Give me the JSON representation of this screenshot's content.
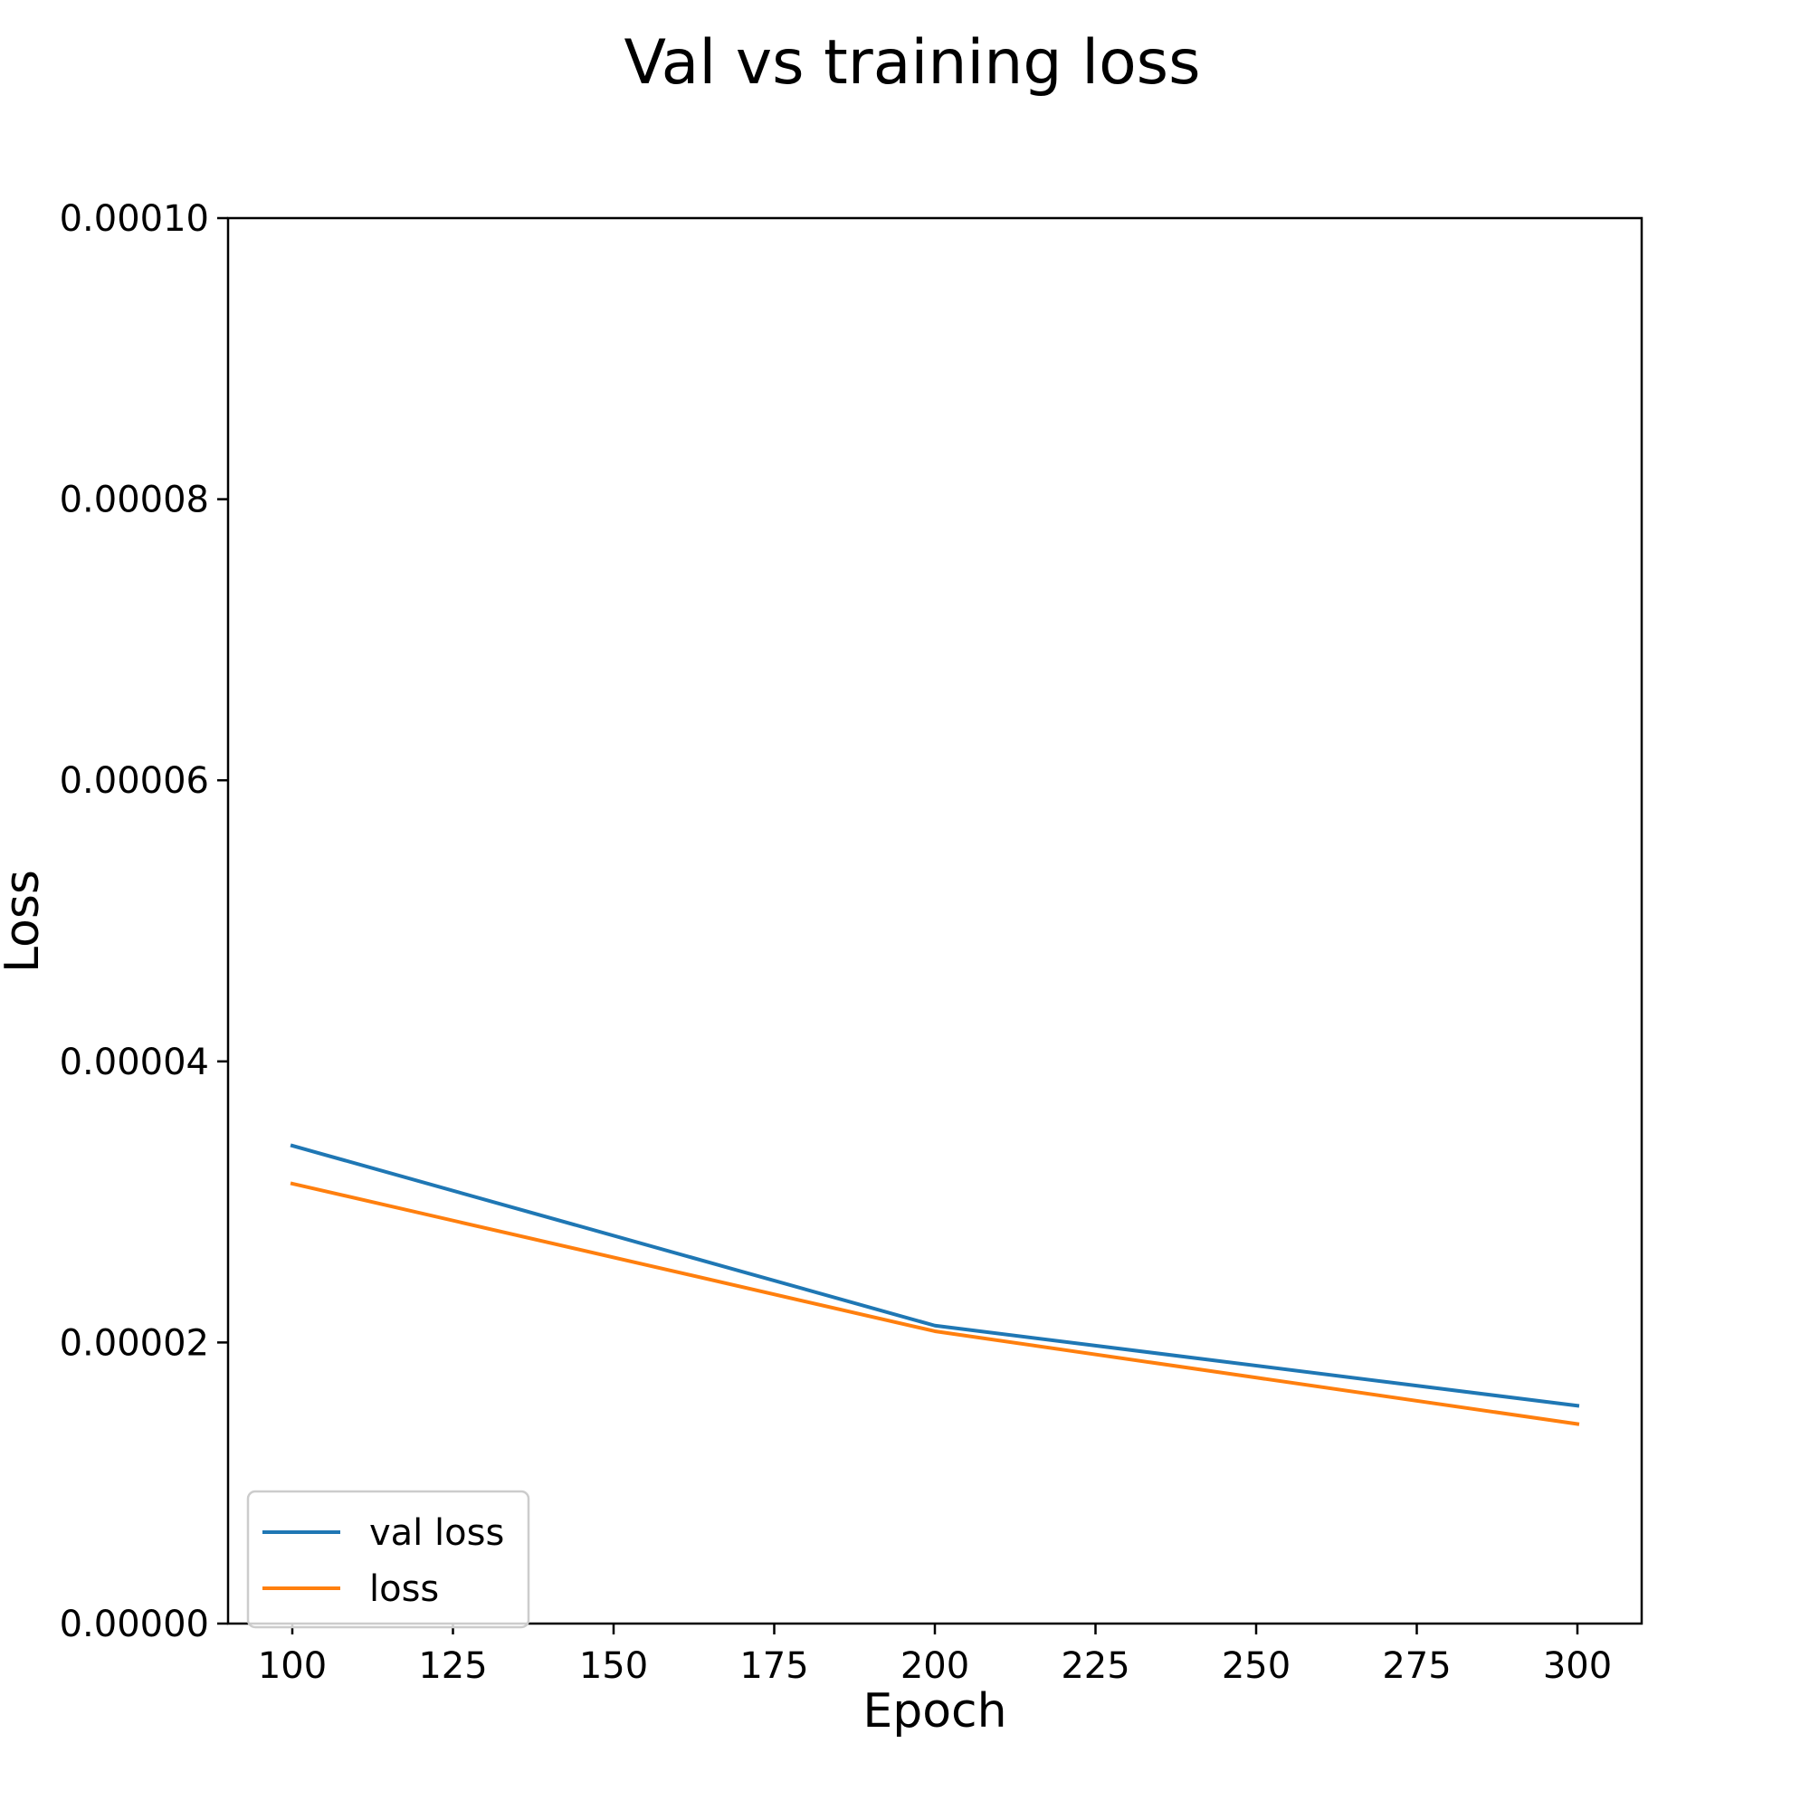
{
  "chart_data": {
    "type": "line",
    "title": "Val vs training loss",
    "xlabel": "Epoch",
    "ylabel": "Loss",
    "xlim": [
      90,
      310
    ],
    "ylim": [
      0,
      0.0001
    ],
    "xticks": [
      100,
      125,
      150,
      175,
      200,
      225,
      250,
      275,
      300
    ],
    "xtick_labels": [
      "100",
      "125",
      "150",
      "175",
      "200",
      "225",
      "250",
      "275",
      "300"
    ],
    "yticks": [
      0,
      2e-05,
      4e-05,
      6e-05,
      8e-05,
      0.0001
    ],
    "ytick_labels": [
      "0.00000",
      "0.00002",
      "0.00004",
      "0.00006",
      "0.00008",
      "0.00010"
    ],
    "grid": false,
    "legend_position": "bottom-left",
    "x": [
      100,
      200,
      300
    ],
    "series": [
      {
        "name": "val loss",
        "color": "#1f77b4",
        "values": [
          3.4e-05,
          2.12e-05,
          1.55e-05
        ]
      },
      {
        "name": "loss",
        "color": "#ff7f0e",
        "values": [
          3.13e-05,
          2.08e-05,
          1.42e-05
        ]
      }
    ]
  }
}
